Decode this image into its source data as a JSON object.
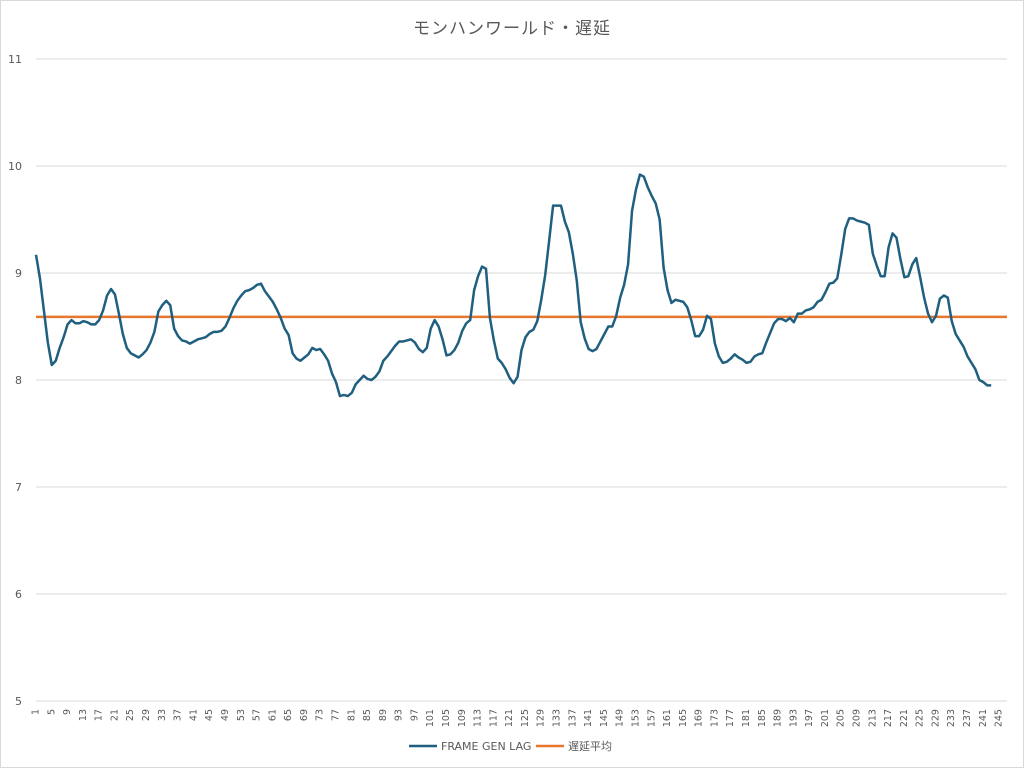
{
  "chart_data": {
    "type": "line",
    "title": "モンハンワールド・遅延",
    "xlabel": "",
    "ylabel": "",
    "ylim": [
      5,
      11
    ],
    "yticks": [
      5,
      6,
      7,
      8,
      9,
      10,
      11
    ],
    "xlim": [
      1,
      247
    ],
    "xticks": [
      1,
      5,
      9,
      13,
      17,
      21,
      25,
      29,
      33,
      37,
      41,
      45,
      49,
      53,
      57,
      61,
      65,
      69,
      73,
      77,
      81,
      85,
      89,
      93,
      97,
      101,
      105,
      109,
      113,
      117,
      121,
      125,
      129,
      133,
      137,
      141,
      145,
      149,
      153,
      157,
      161,
      165,
      169,
      173,
      177,
      181,
      185,
      189,
      193,
      197,
      201,
      205,
      209,
      213,
      217,
      221,
      225,
      229,
      233,
      237,
      241,
      245
    ],
    "grid": true,
    "legend": "bottom",
    "colors": {
      "frame_gen_lag": "#1f5f7f",
      "average": "#e8762d",
      "grid": "#d9d9d9"
    },
    "series": [
      {
        "name": "FRAME GEN LAG",
        "points": [
          [
            1,
            9.17
          ],
          [
            2,
            8.95
          ],
          [
            3,
            8.65
          ],
          [
            4,
            8.35
          ],
          [
            5,
            8.14
          ],
          [
            6,
            8.18
          ],
          [
            7,
            8.3
          ],
          [
            8,
            8.4
          ],
          [
            9,
            8.52
          ],
          [
            10,
            8.56
          ],
          [
            11,
            8.53
          ],
          [
            12,
            8.53
          ],
          [
            13,
            8.55
          ],
          [
            14,
            8.54
          ],
          [
            15,
            8.52
          ],
          [
            16,
            8.52
          ],
          [
            17,
            8.56
          ],
          [
            18,
            8.65
          ],
          [
            19,
            8.79
          ],
          [
            20,
            8.85
          ],
          [
            21,
            8.8
          ],
          [
            22,
            8.62
          ],
          [
            23,
            8.43
          ],
          [
            24,
            8.3
          ],
          [
            25,
            8.25
          ],
          [
            26,
            8.23
          ],
          [
            27,
            8.21
          ],
          [
            28,
            8.24
          ],
          [
            29,
            8.28
          ],
          [
            30,
            8.35
          ],
          [
            31,
            8.45
          ],
          [
            32,
            8.64
          ],
          [
            33,
            8.7
          ],
          [
            34,
            8.74
          ],
          [
            35,
            8.7
          ],
          [
            36,
            8.48
          ],
          [
            37,
            8.41
          ],
          [
            38,
            8.37
          ],
          [
            39,
            8.36
          ],
          [
            40,
            8.34
          ],
          [
            41,
            8.36
          ],
          [
            42,
            8.38
          ],
          [
            43,
            8.39
          ],
          [
            44,
            8.4
          ],
          [
            45,
            8.43
          ],
          [
            46,
            8.45
          ],
          [
            47,
            8.45
          ],
          [
            48,
            8.46
          ],
          [
            49,
            8.5
          ],
          [
            50,
            8.58
          ],
          [
            51,
            8.67
          ],
          [
            52,
            8.74
          ],
          [
            53,
            8.79
          ],
          [
            54,
            8.83
          ],
          [
            55,
            8.84
          ],
          [
            56,
            8.86
          ],
          [
            57,
            8.89
          ],
          [
            58,
            8.9
          ],
          [
            59,
            8.83
          ],
          [
            60,
            8.78
          ],
          [
            61,
            8.73
          ],
          [
            62,
            8.66
          ],
          [
            63,
            8.58
          ],
          [
            64,
            8.48
          ],
          [
            65,
            8.42
          ],
          [
            66,
            8.25
          ],
          [
            67,
            8.2
          ],
          [
            68,
            8.18
          ],
          [
            69,
            8.21
          ],
          [
            70,
            8.24
          ],
          [
            71,
            8.3
          ],
          [
            72,
            8.28
          ],
          [
            73,
            8.29
          ],
          [
            74,
            8.24
          ],
          [
            75,
            8.18
          ],
          [
            76,
            8.06
          ],
          [
            77,
            7.98
          ],
          [
            78,
            7.85
          ],
          [
            79,
            7.86
          ],
          [
            80,
            7.85
          ],
          [
            81,
            7.88
          ],
          [
            82,
            7.96
          ],
          [
            83,
            8.0
          ],
          [
            84,
            8.04
          ],
          [
            85,
            8.01
          ],
          [
            86,
            8.0
          ],
          [
            87,
            8.03
          ],
          [
            88,
            8.08
          ],
          [
            89,
            8.18
          ],
          [
            90,
            8.22
          ],
          [
            91,
            8.27
          ],
          [
            92,
            8.32
          ],
          [
            93,
            8.36
          ],
          [
            94,
            8.36
          ],
          [
            95,
            8.37
          ],
          [
            96,
            8.38
          ],
          [
            97,
            8.35
          ],
          [
            98,
            8.29
          ],
          [
            99,
            8.26
          ],
          [
            100,
            8.3
          ],
          [
            101,
            8.48
          ],
          [
            102,
            8.56
          ],
          [
            103,
            8.5
          ],
          [
            104,
            8.38
          ],
          [
            105,
            8.23
          ],
          [
            106,
            8.24
          ],
          [
            107,
            8.28
          ],
          [
            108,
            8.35
          ],
          [
            109,
            8.46
          ],
          [
            110,
            8.53
          ],
          [
            111,
            8.56
          ],
          [
            112,
            8.84
          ],
          [
            113,
            8.97
          ],
          [
            114,
            9.06
          ],
          [
            115,
            9.04
          ],
          [
            116,
            8.58
          ],
          [
            117,
            8.37
          ],
          [
            118,
            8.2
          ],
          [
            119,
            8.16
          ],
          [
            120,
            8.1
          ],
          [
            121,
            8.02
          ],
          [
            122,
            7.97
          ],
          [
            123,
            8.03
          ],
          [
            124,
            8.28
          ],
          [
            125,
            8.4
          ],
          [
            126,
            8.45
          ],
          [
            127,
            8.47
          ],
          [
            128,
            8.55
          ],
          [
            129,
            8.75
          ],
          [
            130,
            8.98
          ],
          [
            131,
            9.3
          ],
          [
            132,
            9.63
          ],
          [
            133,
            9.63
          ],
          [
            134,
            9.63
          ],
          [
            135,
            9.48
          ],
          [
            136,
            9.38
          ],
          [
            137,
            9.18
          ],
          [
            138,
            8.93
          ],
          [
            139,
            8.54
          ],
          [
            140,
            8.39
          ],
          [
            141,
            8.29
          ],
          [
            142,
            8.27
          ],
          [
            143,
            8.29
          ],
          [
            144,
            8.36
          ],
          [
            145,
            8.43
          ],
          [
            146,
            8.5
          ],
          [
            147,
            8.5
          ],
          [
            148,
            8.6
          ],
          [
            149,
            8.77
          ],
          [
            150,
            8.89
          ],
          [
            151,
            9.08
          ],
          [
            152,
            9.58
          ],
          [
            153,
            9.78
          ],
          [
            154,
            9.92
          ],
          [
            155,
            9.9
          ],
          [
            156,
            9.8
          ],
          [
            157,
            9.72
          ],
          [
            158,
            9.65
          ],
          [
            159,
            9.5
          ],
          [
            160,
            9.05
          ],
          [
            161,
            8.84
          ],
          [
            162,
            8.72
          ],
          [
            163,
            8.75
          ],
          [
            164,
            8.74
          ],
          [
            165,
            8.73
          ],
          [
            166,
            8.68
          ],
          [
            167,
            8.56
          ],
          [
            168,
            8.41
          ],
          [
            169,
            8.41
          ],
          [
            170,
            8.47
          ],
          [
            171,
            8.6
          ],
          [
            172,
            8.57
          ],
          [
            173,
            8.34
          ],
          [
            174,
            8.22
          ],
          [
            175,
            8.16
          ],
          [
            176,
            8.17
          ],
          [
            177,
            8.2
          ],
          [
            178,
            8.24
          ],
          [
            179,
            8.21
          ],
          [
            180,
            8.19
          ],
          [
            181,
            8.16
          ],
          [
            182,
            8.17
          ],
          [
            183,
            8.22
          ],
          [
            184,
            8.24
          ],
          [
            185,
            8.25
          ],
          [
            186,
            8.35
          ],
          [
            187,
            8.44
          ],
          [
            188,
            8.53
          ],
          [
            189,
            8.57
          ],
          [
            190,
            8.57
          ],
          [
            191,
            8.55
          ],
          [
            192,
            8.58
          ],
          [
            193,
            8.54
          ],
          [
            194,
            8.62
          ],
          [
            195,
            8.62
          ],
          [
            196,
            8.65
          ],
          [
            197,
            8.66
          ],
          [
            198,
            8.68
          ],
          [
            199,
            8.73
          ],
          [
            200,
            8.75
          ],
          [
            201,
            8.82
          ],
          [
            202,
            8.9
          ],
          [
            203,
            8.91
          ],
          [
            204,
            8.95
          ],
          [
            205,
            9.17
          ],
          [
            206,
            9.41
          ],
          [
            207,
            9.51
          ],
          [
            208,
            9.51
          ],
          [
            209,
            9.49
          ],
          [
            210,
            9.48
          ],
          [
            211,
            9.47
          ],
          [
            212,
            9.45
          ],
          [
            213,
            9.18
          ],
          [
            214,
            9.07
          ],
          [
            215,
            8.97
          ],
          [
            216,
            8.97
          ],
          [
            217,
            9.24
          ],
          [
            218,
            9.37
          ],
          [
            219,
            9.33
          ],
          [
            220,
            9.13
          ],
          [
            221,
            8.96
          ],
          [
            222,
            8.97
          ],
          [
            223,
            9.08
          ],
          [
            224,
            9.14
          ],
          [
            225,
            8.96
          ],
          [
            226,
            8.77
          ],
          [
            227,
            8.62
          ],
          [
            228,
            8.54
          ],
          [
            229,
            8.6
          ],
          [
            230,
            8.76
          ],
          [
            231,
            8.79
          ],
          [
            232,
            8.77
          ],
          [
            233,
            8.55
          ],
          [
            234,
            8.43
          ],
          [
            235,
            8.37
          ],
          [
            236,
            8.31
          ],
          [
            237,
            8.22
          ],
          [
            238,
            8.16
          ],
          [
            239,
            8.1
          ],
          [
            240,
            8.0
          ],
          [
            241,
            7.98
          ],
          [
            242,
            7.95
          ],
          [
            243,
            7.95
          ]
        ]
      },
      {
        "name": "遅延平均",
        "constant": 8.59
      }
    ]
  }
}
